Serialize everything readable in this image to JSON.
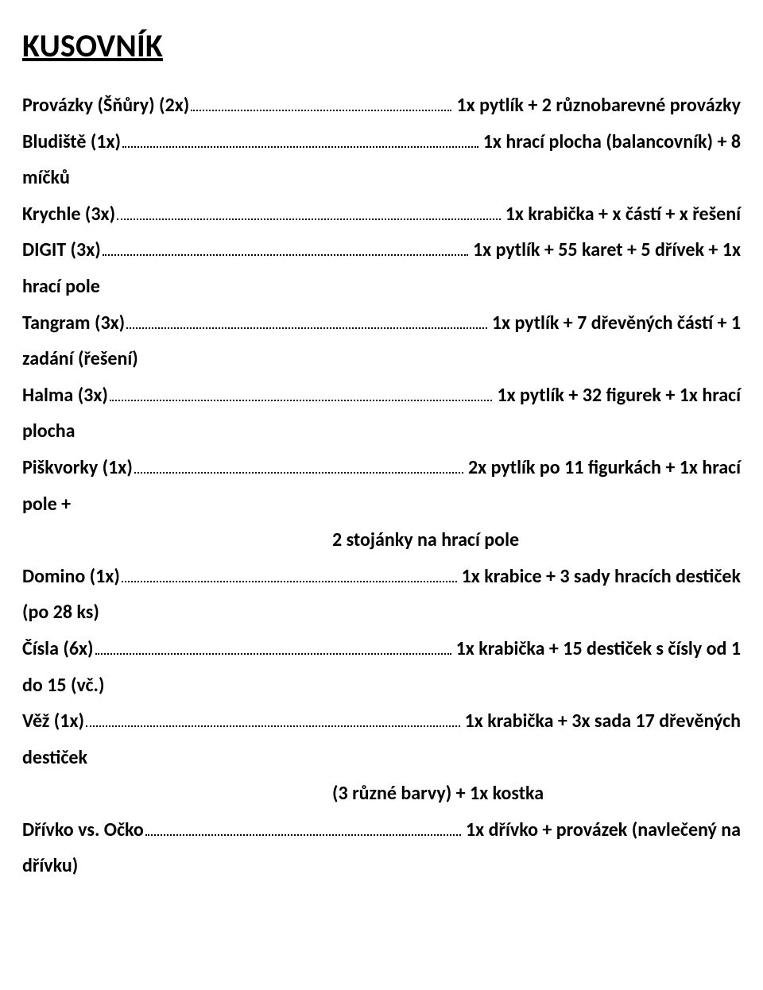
{
  "title": "KUSOVNÍK",
  "items": [
    {
      "lead_name": "Provázky (Šňůry)",
      "lead_qty": "(2x)",
      "tail_first": "1x pytlík + 2 různobarevné provázky",
      "continuation": null,
      "indent_cont": null
    },
    {
      "lead_name": "Bludiště",
      "lead_qty": "(1x)",
      "tail_first": "1x hrací plocha (balancovník) + 8",
      "continuation": "míčků",
      "indent_cont": null
    },
    {
      "lead_name": "Krychle",
      "lead_qty": "(3x)",
      "tail_first": "1x krabička + x částí + x řešení",
      "continuation": null,
      "indent_cont": null
    },
    {
      "lead_name": "DIGIT",
      "lead_qty": "(3x)",
      "tail_first": "1x pytlík + 55 karet + 5 dřívek + 1x",
      "continuation": "hrací pole",
      "indent_cont": null
    },
    {
      "lead_name": "Tangram",
      "lead_qty": "(3x)",
      "tail_first": "1x pytlík + 7 dřevěných částí + 1",
      "continuation": "zadání (řešení)",
      "indent_cont": null
    },
    {
      "lead_name": "Halma",
      "lead_qty": "(3x)",
      "tail_first": "1x pytlík + 32 figurek + 1x hrací",
      "continuation": "plocha",
      "indent_cont": null
    },
    {
      "lead_name": "Piškvorky",
      "lead_qty": "(1x)",
      "tail_first": "2x pytlík po 11 figurkách + 1x hrací",
      "continuation": "pole +",
      "indent_cont": "2 stojánky na hrací pole"
    },
    {
      "lead_name": "Domino",
      "lead_qty": "(1x)",
      "tail_first": "1x krabice + 3 sady hracích destiček",
      "continuation": "(po 28 ks)",
      "indent_cont": null
    },
    {
      "lead_name": "Čísla",
      "lead_qty": "(6x)",
      "tail_first": "1x krabička + 15 destiček s čísly od 1",
      "continuation": "do 15 (vč.)",
      "indent_cont": null
    },
    {
      "lead_name": "Věž",
      "lead_qty": "(1x)",
      "tail_first": "1x krabička + 3x sada 17 dřevěných",
      "continuation": "destiček",
      "indent_cont": "(3 různé barvy) + 1x kostka"
    },
    {
      "lead_name": "Dřívko vs. Očko",
      "lead_qty": "",
      "tail_first": "1x dřívko + provázek (navlečený na",
      "continuation": "dřívku)",
      "indent_cont": null
    }
  ]
}
